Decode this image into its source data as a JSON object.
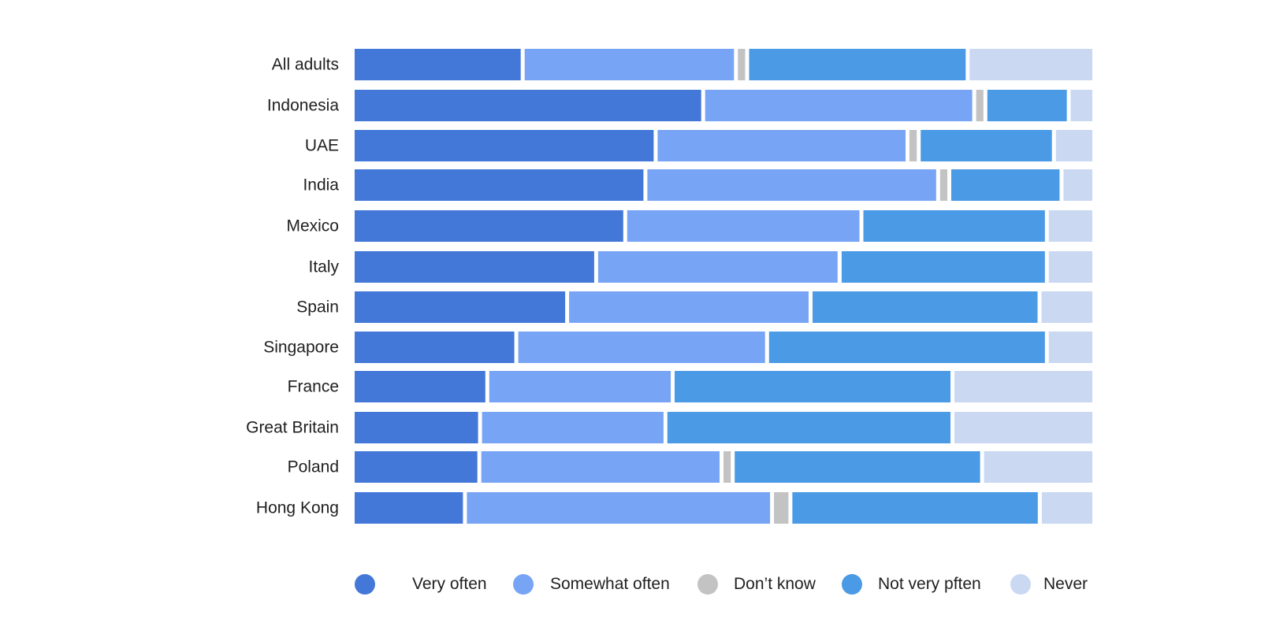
{
  "chart_data": {
    "type": "bar",
    "orientation": "horizontal",
    "stacked": true,
    "title": "",
    "xlabel": "",
    "ylabel": "",
    "xlim": [
      0,
      100
    ],
    "grid": false,
    "legend_position": "bottom",
    "categories": [
      "All adults",
      "Indonesia",
      "UAE",
      "India",
      "Mexico",
      "Italy",
      "Spain",
      "Singapore",
      "France",
      "Great Britain",
      "Poland",
      "Hong Kong"
    ],
    "series": [
      {
        "name": "Very often",
        "color": "#4378d8",
        "values": [
          23,
          48,
          41,
          40,
          37,
          33,
          29,
          22,
          18,
          17,
          17,
          15
        ]
      },
      {
        "name": "Somewhat often",
        "color": "#78a4f5",
        "values": [
          29,
          37,
          34,
          40,
          32,
          33,
          33,
          34,
          25,
          25,
          33,
          42
        ]
      },
      {
        "name": "Don’t know",
        "color": "#c3c3c3",
        "values": [
          1,
          1,
          1,
          1,
          0,
          0,
          0,
          0,
          0,
          0,
          1,
          2
        ]
      },
      {
        "name": "Not very pften",
        "color": "#4a9ae5",
        "values": [
          30,
          11,
          18,
          15,
          25,
          28,
          31,
          38,
          38,
          39,
          34,
          34
        ]
      },
      {
        "name": "Never",
        "color": "#cad8f2",
        "values": [
          17,
          3,
          5,
          4,
          6,
          6,
          7,
          6,
          19,
          19,
          15,
          7
        ]
      }
    ]
  }
}
